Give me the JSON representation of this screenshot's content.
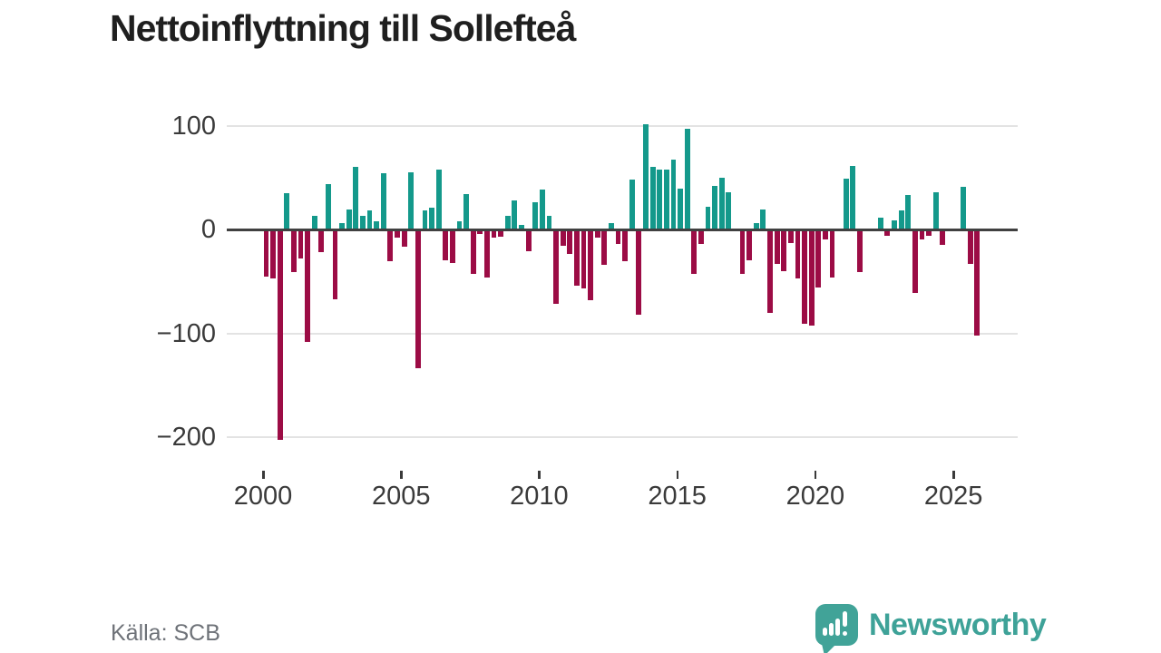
{
  "title": "Nettoinflyttning till Sollefteå",
  "source_label": "Källa: SCB",
  "branding": {
    "name": "Newsworthy",
    "icon": "newsworthy-speech-bubble-bar-chart-icon",
    "brand_color": "#3ea298"
  },
  "colors": {
    "positive_bar": "#14998b",
    "negative_bar": "#9c0c45",
    "zero_axis": "#404040",
    "gridline": "#e3e3e3",
    "title_text": "#1f1f1f",
    "tick_label_text": "#3a3a3a",
    "source_text": "#6e7278",
    "background": "#ffffff"
  },
  "y_axis": {
    "tick_values": [
      100,
      0,
      -100,
      -200
    ],
    "tick_labels": [
      "100",
      "0",
      "−100",
      "−200"
    ]
  },
  "x_axis": {
    "tick_years": [
      2000,
      2005,
      2010,
      2015,
      2020,
      2025
    ],
    "tick_labels": [
      "2000",
      "2005",
      "2010",
      "2015",
      "2020",
      "2025"
    ]
  },
  "chart_data": {
    "type": "bar",
    "title": "Nettoinflyttning till Sollefteå",
    "source": "Källa: SCB",
    "frequency": "quarterly",
    "xlabel": "",
    "ylabel": "",
    "ylim": [
      -210,
      110
    ],
    "grid": true,
    "legend": false,
    "positive_color": "#14998b",
    "negative_color": "#9c0c45",
    "x": [
      "2000 Q1",
      "2000 Q2",
      "2000 Q3",
      "2000 Q4",
      "2001 Q1",
      "2001 Q2",
      "2001 Q3",
      "2001 Q4",
      "2002 Q1",
      "2002 Q2",
      "2002 Q3",
      "2002 Q4",
      "2003 Q1",
      "2003 Q2",
      "2003 Q3",
      "2003 Q4",
      "2004 Q1",
      "2004 Q2",
      "2004 Q3",
      "2004 Q4",
      "2005 Q1",
      "2005 Q2",
      "2005 Q3",
      "2005 Q4",
      "2006 Q1",
      "2006 Q2",
      "2006 Q3",
      "2006 Q4",
      "2007 Q1",
      "2007 Q2",
      "2007 Q3",
      "2007 Q4",
      "2008 Q1",
      "2008 Q2",
      "2008 Q3",
      "2008 Q4",
      "2009 Q1",
      "2009 Q2",
      "2009 Q3",
      "2009 Q4",
      "2010 Q1",
      "2010 Q2",
      "2010 Q3",
      "2010 Q4",
      "2011 Q1",
      "2011 Q2",
      "2011 Q3",
      "2011 Q4",
      "2012 Q1",
      "2012 Q2",
      "2012 Q3",
      "2012 Q4",
      "2013 Q1",
      "2013 Q2",
      "2013 Q3",
      "2013 Q4",
      "2014 Q1",
      "2014 Q2",
      "2014 Q3",
      "2014 Q4",
      "2015 Q1",
      "2015 Q2",
      "2015 Q3",
      "2015 Q4",
      "2016 Q1",
      "2016 Q2",
      "2016 Q3",
      "2016 Q4",
      "2017 Q1",
      "2017 Q2",
      "2017 Q3",
      "2017 Q4",
      "2018 Q1",
      "2018 Q2",
      "2018 Q3",
      "2018 Q4",
      "2019 Q1",
      "2019 Q2",
      "2019 Q3",
      "2019 Q4",
      "2020 Q1",
      "2020 Q2",
      "2020 Q3",
      "2020 Q4",
      "2021 Q1",
      "2021 Q2",
      "2021 Q3",
      "2021 Q4",
      "2022 Q1",
      "2022 Q2",
      "2022 Q3",
      "2022 Q4",
      "2023 Q1",
      "2023 Q2",
      "2023 Q3",
      "2023 Q4",
      "2024 Q1",
      "2024 Q2",
      "2024 Q3",
      "2024 Q4",
      "2025 Q1",
      "2025 Q2",
      "2025 Q3",
      "2025 Q4"
    ],
    "values": [
      -45,
      -47,
      -203,
      35,
      -41,
      -28,
      -108,
      13,
      -22,
      44,
      -67,
      6,
      19,
      60,
      13,
      18,
      8,
      54,
      -31,
      -8,
      -17,
      55,
      -134,
      18,
      21,
      58,
      -30,
      -32,
      8,
      34,
      -43,
      -4,
      -46,
      -8,
      -7,
      13,
      28,
      4,
      -21,
      26,
      38,
      13,
      -72,
      -16,
      -24,
      -54,
      -57,
      -68,
      -8,
      -34,
      6,
      -14,
      -31,
      48,
      -82,
      101,
      60,
      58,
      58,
      67,
      39,
      97,
      -43,
      -14,
      22,
      42,
      50,
      36,
      0,
      -43,
      -30,
      6,
      19,
      -80,
      -33,
      -40,
      -13,
      -47,
      -91,
      -93,
      -56,
      -10,
      -46,
      0,
      49,
      61,
      -41,
      0,
      -2,
      11,
      -6,
      9,
      18,
      33,
      -61,
      -10,
      -6,
      36,
      -15,
      0,
      0,
      41,
      -33,
      -102
    ]
  }
}
